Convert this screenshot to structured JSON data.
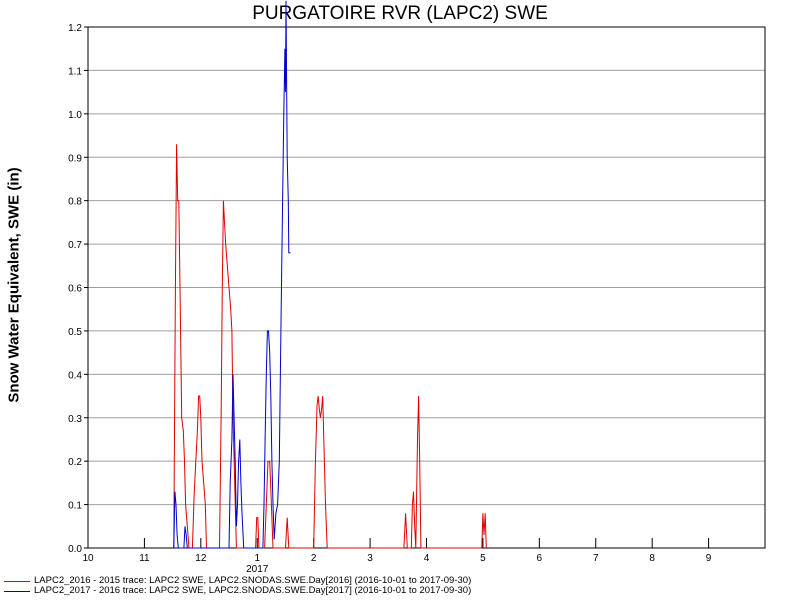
{
  "chart_data": {
    "type": "line",
    "title": "PURGATOIRE RVR (LAPC2) SWE",
    "ylabel": "Snow Water Equivalent, SWE (in)",
    "xlabel": "",
    "ylim": [
      0,
      1.2
    ],
    "y_ticks": [
      "0.0",
      "0.1",
      "0.2",
      "0.3",
      "0.4",
      "0.5",
      "0.6",
      "0.7",
      "0.8",
      "0.9",
      "1.0",
      "1.1",
      "1.2"
    ],
    "x_ticks": [
      {
        "label": "10",
        "x": 10
      },
      {
        "label": "11",
        "x": 11
      },
      {
        "label": "12",
        "x": 12
      },
      {
        "label": "1",
        "x": 13
      },
      {
        "label": "2",
        "x": 14
      },
      {
        "label": "3",
        "x": 15
      },
      {
        "label": "4",
        "x": 16
      },
      {
        "label": "5",
        "x": 17
      },
      {
        "label": "6",
        "x": 18
      },
      {
        "label": "7",
        "x": 19
      },
      {
        "label": "8",
        "x": 20
      },
      {
        "label": "9",
        "x": 21
      }
    ],
    "year_label": "2017",
    "xlim": [
      10,
      22
    ],
    "grid": true,
    "legend_position": "bottom-left",
    "series": [
      {
        "name": "LAPC2_2016 - 2015 trace: LAPC2 SWE, LAPC2.SNODAS.SWE.Day[2016] (2016-10-01 to 2017-09-30)",
        "color": "#e00000",
        "points": [
          [
            11.52,
            0
          ],
          [
            11.53,
            0.2
          ],
          [
            11.55,
            0.6
          ],
          [
            11.57,
            0.93
          ],
          [
            11.59,
            0.8
          ],
          [
            11.61,
            0.8
          ],
          [
            11.63,
            0.6
          ],
          [
            11.66,
            0.3
          ],
          [
            11.69,
            0.27
          ],
          [
            11.71,
            0.2
          ],
          [
            11.73,
            0.1
          ],
          [
            11.76,
            0.05
          ],
          [
            11.79,
            0
          ],
          [
            11.85,
            0
          ],
          [
            11.88,
            0.12
          ],
          [
            11.91,
            0.2
          ],
          [
            11.94,
            0.27
          ],
          [
            11.96,
            0.35
          ],
          [
            11.98,
            0.35
          ],
          [
            12.0,
            0.3
          ],
          [
            12.02,
            0.2
          ],
          [
            12.05,
            0.15
          ],
          [
            12.08,
            0.1
          ],
          [
            12.1,
            0
          ],
          [
            12.33,
            0
          ],
          [
            12.36,
            0.3
          ],
          [
            12.38,
            0.6
          ],
          [
            12.4,
            0.8
          ],
          [
            12.42,
            0.75
          ],
          [
            12.44,
            0.7
          ],
          [
            12.47,
            0.65
          ],
          [
            12.5,
            0.6
          ],
          [
            12.53,
            0.55
          ],
          [
            12.55,
            0.5
          ],
          [
            12.57,
            0.3
          ],
          [
            12.6,
            0.15
          ],
          [
            12.63,
            0
          ],
          [
            12.97,
            0
          ],
          [
            12.99,
            0.07
          ],
          [
            13.01,
            0.07
          ],
          [
            13.03,
            0
          ],
          [
            13.13,
            0
          ],
          [
            13.16,
            0.1
          ],
          [
            13.19,
            0.2
          ],
          [
            13.22,
            0.2
          ],
          [
            13.25,
            0.1
          ],
          [
            13.28,
            0
          ],
          [
            13.5,
            0
          ],
          [
            13.53,
            0.07
          ],
          [
            13.56,
            0
          ],
          [
            14.0,
            0
          ],
          [
            14.03,
            0.2
          ],
          [
            14.06,
            0.33
          ],
          [
            14.08,
            0.35
          ],
          [
            14.1,
            0.32
          ],
          [
            14.12,
            0.3
          ],
          [
            14.14,
            0.32
          ],
          [
            14.16,
            0.35
          ],
          [
            14.18,
            0.25
          ],
          [
            14.21,
            0.1
          ],
          [
            14.24,
            0
          ],
          [
            15.6,
            0
          ],
          [
            15.63,
            0.08
          ],
          [
            15.66,
            0
          ],
          [
            15.73,
            0
          ],
          [
            15.75,
            0.1
          ],
          [
            15.77,
            0.13
          ],
          [
            15.79,
            0.05
          ],
          [
            15.81,
            0
          ],
          [
            15.84,
            0.25
          ],
          [
            15.86,
            0.35
          ],
          [
            15.88,
            0.2
          ],
          [
            15.9,
            0
          ],
          [
            16.98,
            0
          ],
          [
            17.0,
            0.08
          ],
          [
            17.02,
            0.03
          ],
          [
            17.04,
            0.08
          ],
          [
            17.06,
            0
          ]
        ]
      },
      {
        "name": "LAPC2_2017 - 2016 trace: LAPC2 SWE, LAPC2.SNODAS.SWE.Day[2017] (2016-10-01 to 2017-09-30)",
        "color": "#0000cc",
        "points": [
          [
            11.52,
            0
          ],
          [
            11.54,
            0.13
          ],
          [
            11.56,
            0.1
          ],
          [
            11.58,
            0.03
          ],
          [
            11.6,
            0
          ],
          [
            11.7,
            0
          ],
          [
            11.72,
            0.05
          ],
          [
            11.74,
            0.03
          ],
          [
            11.76,
            0
          ],
          [
            12.5,
            0
          ],
          [
            12.52,
            0.15
          ],
          [
            12.55,
            0.25
          ],
          [
            12.57,
            0.4
          ],
          [
            12.59,
            0.3
          ],
          [
            12.61,
            0.2
          ],
          [
            12.63,
            0.05
          ],
          [
            12.65,
            0.1
          ],
          [
            12.67,
            0.2
          ],
          [
            12.69,
            0.25
          ],
          [
            12.71,
            0.15
          ],
          [
            12.73,
            0.08
          ],
          [
            12.76,
            0
          ],
          [
            13.1,
            0
          ],
          [
            13.12,
            0.1
          ],
          [
            13.14,
            0.25
          ],
          [
            13.16,
            0.4
          ],
          [
            13.18,
            0.5
          ],
          [
            13.2,
            0.5
          ],
          [
            13.22,
            0.45
          ],
          [
            13.24,
            0.35
          ],
          [
            13.26,
            0.2
          ],
          [
            13.28,
            0.1
          ],
          [
            13.3,
            0.02
          ],
          [
            13.33,
            0.08
          ],
          [
            13.36,
            0.1
          ],
          [
            13.39,
            0.2
          ],
          [
            13.42,
            0.5
          ],
          [
            13.45,
            0.8
          ],
          [
            13.47,
            1.0
          ],
          [
            13.49,
            1.15
          ],
          [
            13.5,
            1.05
          ],
          [
            13.51,
            1.26
          ],
          [
            13.53,
            0.9
          ],
          [
            13.55,
            0.8
          ],
          [
            13.56,
            0.68
          ],
          [
            13.59,
            0.68
          ]
        ]
      }
    ]
  }
}
